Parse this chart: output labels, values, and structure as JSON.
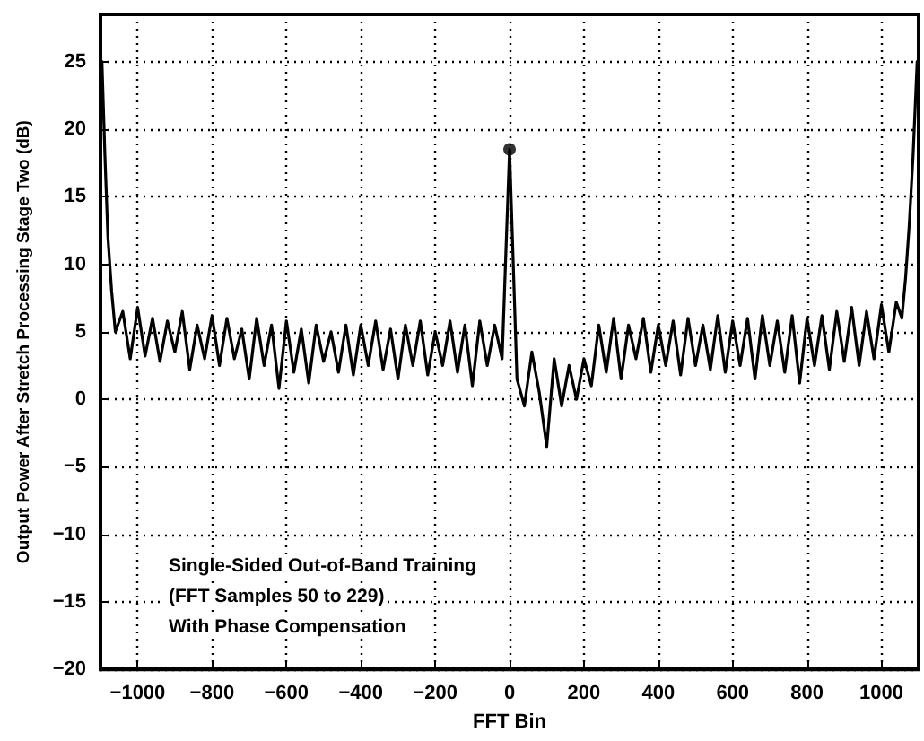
{
  "chart_data": {
    "type": "line",
    "xlabel": "FFT Bin",
    "ylabel": "Output Power After Stretch Processing Stage Two (dB)",
    "xlim": [
      -1100,
      1100
    ],
    "ylim": [
      -20,
      28.5
    ],
    "xticks": [
      -1000,
      -800,
      -600,
      -400,
      -200,
      0,
      200,
      400,
      600,
      800,
      1000
    ],
    "yticks": [
      -20,
      -15,
      -10,
      -5,
      0,
      5,
      10,
      15,
      20,
      25
    ],
    "grid": true,
    "line_style": "solid",
    "annotations": [
      "Single-Sided Out-of-Band Training",
      "(FFT Samples 50 to 229)",
      "With Phase Compensation"
    ],
    "series": [
      {
        "color": "#000000",
        "marker": "none",
        "x": [
          -1096,
          -1088,
          -1080,
          -1070,
          -1060,
          -1040,
          -1020,
          -1000,
          -980,
          -960,
          -940,
          -920,
          -900,
          -880,
          -860,
          -840,
          -820,
          -800,
          -780,
          -760,
          -740,
          -720,
          -700,
          -680,
          -660,
          -640,
          -620,
          -600,
          -580,
          -560,
          -540,
          -520,
          -500,
          -480,
          -460,
          -440,
          -420,
          -400,
          -380,
          -360,
          -340,
          -320,
          -300,
          -280,
          -260,
          -240,
          -220,
          -200,
          -180,
          -160,
          -140,
          -120,
          -100,
          -80,
          -60,
          -40,
          -20,
          0,
          20,
          40,
          60,
          80,
          100,
          120,
          140,
          160,
          180,
          200,
          220,
          240,
          260,
          280,
          300,
          320,
          340,
          360,
          380,
          400,
          420,
          440,
          460,
          480,
          500,
          520,
          540,
          560,
          580,
          600,
          620,
          640,
          660,
          680,
          700,
          720,
          740,
          760,
          780,
          800,
          820,
          840,
          860,
          880,
          900,
          920,
          940,
          960,
          980,
          1000,
          1020,
          1040,
          1055,
          1065,
          1075,
          1085,
          1096
        ],
        "values": [
          25,
          18,
          12,
          8,
          5,
          6.5,
          3.0,
          6.8,
          3.2,
          6.0,
          2.8,
          5.8,
          3.5,
          6.5,
          2.2,
          5.5,
          3.0,
          6.2,
          2.5,
          6.0,
          3.0,
          5.2,
          1.5,
          6.0,
          2.5,
          5.5,
          0.8,
          5.8,
          2.0,
          5.2,
          1.2,
          5.5,
          2.8,
          5.0,
          2.0,
          5.5,
          1.8,
          5.5,
          2.5,
          5.8,
          2.2,
          5.2,
          1.5,
          5.5,
          2.5,
          5.8,
          1.8,
          5.0,
          2.5,
          5.8,
          2.0,
          5.5,
          1.0,
          5.8,
          2.5,
          5.5,
          3.0,
          18.5,
          1.5,
          -0.5,
          3.5,
          0.5,
          -3.5,
          3.0,
          -0.5,
          2.5,
          0.0,
          3.0,
          1.0,
          5.5,
          2.0,
          6.0,
          1.5,
          5.5,
          3.0,
          6.0,
          2.0,
          5.5,
          2.5,
          5.8,
          1.8,
          6.0,
          2.5,
          5.5,
          2.2,
          6.2,
          2.0,
          5.8,
          2.5,
          6.0,
          1.5,
          6.2,
          2.5,
          5.8,
          2.0,
          6.2,
          1.2,
          6.0,
          2.5,
          6.2,
          2.2,
          6.5,
          2.8,
          6.8,
          2.5,
          6.5,
          3.0,
          7.0,
          3.5,
          7.2,
          6.0,
          9,
          13,
          18,
          25
        ]
      },
      {
        "type": "scatter",
        "color": "#000000",
        "marker": "circle",
        "x": [
          0
        ],
        "values": [
          18.5
        ]
      }
    ]
  }
}
